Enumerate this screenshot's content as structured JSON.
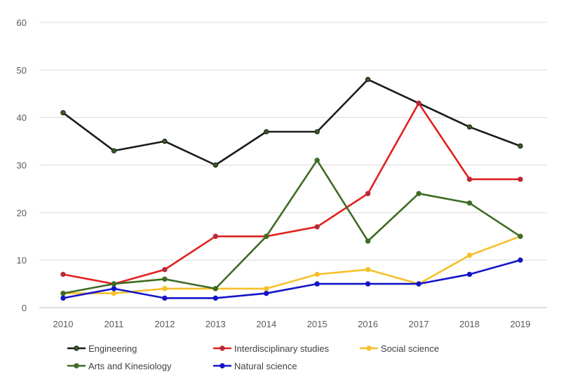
{
  "chart_data": {
    "type": "line",
    "title": "",
    "xlabel": "",
    "ylabel": "",
    "ylim": [
      0,
      60
    ],
    "yticks": [
      0,
      10,
      20,
      30,
      40,
      50,
      60
    ],
    "grid": true,
    "legend_position": "bottom-left",
    "categories": [
      "2010",
      "2011",
      "2012",
      "2013",
      "2014",
      "2015",
      "2016",
      "2017",
      "2018",
      "2019"
    ],
    "series": [
      {
        "name": "Engineering",
        "color": "#1a1a1a",
        "marker": "#3b5e1f",
        "values": [
          41,
          33,
          35,
          30,
          37,
          37,
          48,
          43,
          38,
          34
        ]
      },
      {
        "name": "Interdisciplinary studies",
        "color": "#e0201e",
        "marker": "#a03050",
        "values": [
          7,
          5,
          8,
          15,
          15,
          17,
          24,
          43,
          27,
          27
        ]
      },
      {
        "name": "Social science",
        "color": "#f5c02a",
        "marker": "#f5c02a",
        "values": [
          3,
          3,
          4,
          4,
          4,
          7,
          8,
          5,
          11,
          15
        ]
      },
      {
        "name": "Arts and Kinesiology",
        "color": "#3f6b24",
        "marker": "#3f6b24",
        "values": [
          3,
          5,
          6,
          4,
          15,
          31,
          14,
          24,
          22,
          15
        ]
      },
      {
        "name": "Natural science",
        "color": "#1414c8",
        "marker": "#1414c8",
        "values": [
          2,
          4,
          2,
          2,
          3,
          5,
          5,
          5,
          7,
          10
        ]
      }
    ]
  }
}
